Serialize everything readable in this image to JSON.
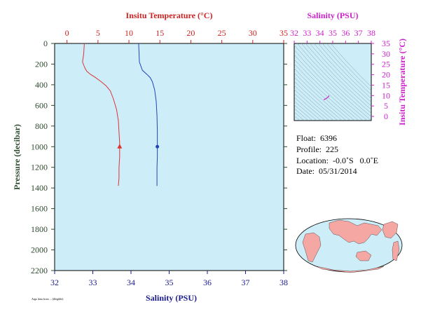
{
  "chart_data": [
    {
      "type": "line",
      "id": "main_profile",
      "top_axis": {
        "label": "Insitu Temperature (°C)",
        "range": [
          -2,
          35
        ],
        "ticks": [
          0,
          5,
          10,
          15,
          20,
          25,
          30,
          35
        ],
        "color": "#cc2222"
      },
      "bottom_axis": {
        "label": "Salinity (PSU)",
        "range": [
          32,
          38
        ],
        "ticks": [
          32,
          33,
          34,
          35,
          36,
          37,
          38
        ],
        "color": "#1a1a8c"
      },
      "left_axis": {
        "label": "Pressure (decibar)",
        "range": [
          0,
          2200
        ],
        "inverted": true,
        "ticks": [
          0,
          200,
          400,
          600,
          800,
          1000,
          1200,
          1400,
          1600,
          1800,
          2000,
          2200
        ],
        "color": "#2d4a2d"
      },
      "plot_background": "#cdeef8",
      "series": [
        {
          "variable": "temperature",
          "axis": "top",
          "color": "#dd3333",
          "points": [
            [
              2.8,
              0
            ],
            [
              2.7,
              100
            ],
            [
              2.5,
              180
            ],
            [
              2.9,
              240
            ],
            [
              3.2,
              270
            ],
            [
              3.8,
              300
            ],
            [
              4.6,
              330
            ],
            [
              5.5,
              370
            ],
            [
              6.3,
              410
            ],
            [
              7.0,
              460
            ],
            [
              7.5,
              540
            ],
            [
              8.0,
              640
            ],
            [
              8.3,
              750
            ],
            [
              8.4,
              860
            ],
            [
              8.5,
              960
            ],
            [
              8.5,
              1000
            ],
            [
              8.5,
              1100
            ],
            [
              8.4,
              1200
            ],
            [
              8.4,
              1300
            ],
            [
              8.3,
              1380
            ]
          ],
          "marker": {
            "x": 8.5,
            "y": 1000,
            "shape": "triangle"
          }
        },
        {
          "variable": "salinity",
          "axis": "bottom",
          "color": "#2244bb",
          "points": [
            [
              34.2,
              0
            ],
            [
              34.22,
              180
            ],
            [
              34.3,
              260
            ],
            [
              34.42,
              300
            ],
            [
              34.5,
              330
            ],
            [
              34.56,
              370
            ],
            [
              34.62,
              450
            ],
            [
              34.66,
              560
            ],
            [
              34.68,
              700
            ],
            [
              34.69,
              850
            ],
            [
              34.69,
              1000
            ],
            [
              34.69,
              1100
            ],
            [
              34.68,
              1200
            ],
            [
              34.68,
              1300
            ],
            [
              34.68,
              1380
            ]
          ],
          "marker": {
            "x": 34.69,
            "y": 1000,
            "shape": "circle"
          }
        }
      ]
    },
    {
      "type": "scatter",
      "id": "ts_diagram",
      "top_axis": {
        "label": "Salinity (PSU)",
        "range": [
          32,
          38
        ],
        "ticks": [
          32,
          33,
          34,
          35,
          36,
          37,
          38
        ],
        "color": "#cc22cc"
      },
      "right_axis": {
        "label": "Insitu Temperature (°C)",
        "range": [
          -2,
          35
        ],
        "ticks": [
          0,
          5,
          10,
          15,
          20,
          25,
          30,
          35
        ],
        "color": "#cc22cc"
      },
      "plot_background": "#cdeef8",
      "series": [
        {
          "color": "#cc22cc",
          "points": [
            [
              34.3,
              8.0
            ],
            [
              34.5,
              8.6
            ],
            [
              34.62,
              9.2
            ],
            [
              34.69,
              9.6
            ],
            [
              34.69,
              10.0
            ]
          ]
        }
      ]
    }
  ],
  "float_info": {
    "float": "Float:  6396",
    "profile": "Profile:  225",
    "location": "Location:  -0.0˚S   0.0˚E",
    "date": "Date:  05/31/2014"
  },
  "footer": {
    "small_text": "Argo data from ... (illegible)"
  },
  "world_map": {
    "ocean_color": "#cdeef8",
    "land_color": "#f4a7a3"
  }
}
